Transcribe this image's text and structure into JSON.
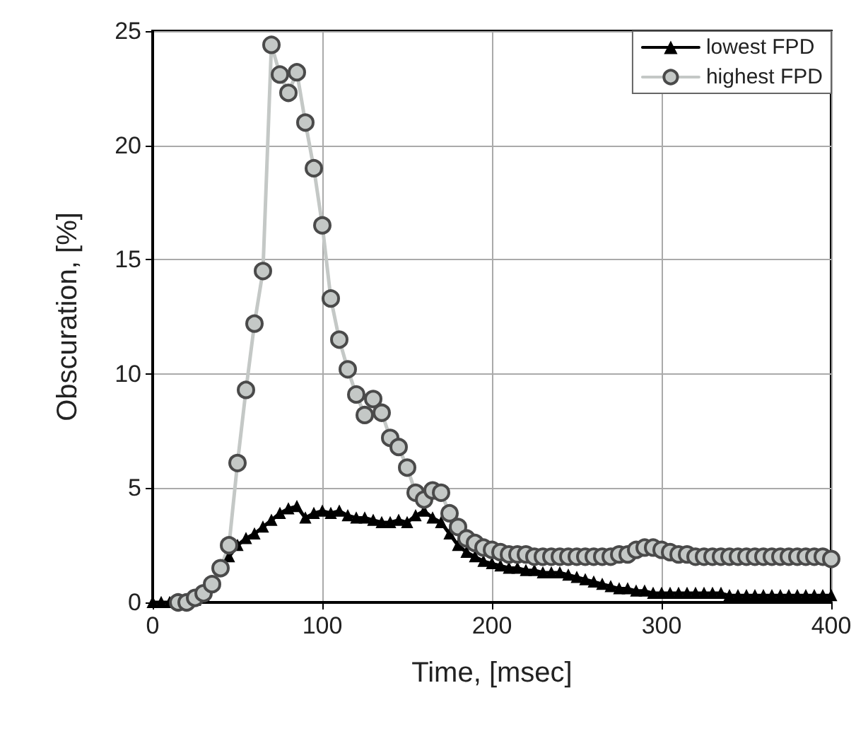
{
  "chart_data": {
    "type": "line",
    "xlabel": "Time, [msec]",
    "ylabel": "Obscuration, [%]",
    "xlim": [
      0,
      400
    ],
    "xticks": [
      0,
      100,
      200,
      300,
      400
    ],
    "ylim": [
      0,
      25
    ],
    "yticks": [
      0,
      5,
      10,
      15,
      20,
      25
    ],
    "grid": true,
    "legend": "top right",
    "series": [
      {
        "name": "lowest FPD",
        "color": "#000000",
        "marker": "triangle",
        "x": [
          0,
          5,
          10,
          15,
          20,
          25,
          30,
          35,
          40,
          45,
          50,
          55,
          60,
          65,
          70,
          75,
          80,
          85,
          90,
          95,
          100,
          105,
          110,
          115,
          120,
          125,
          130,
          135,
          140,
          145,
          150,
          155,
          160,
          165,
          170,
          175,
          180,
          185,
          190,
          195,
          200,
          205,
          210,
          215,
          220,
          225,
          230,
          235,
          240,
          245,
          250,
          255,
          260,
          265,
          270,
          275,
          280,
          285,
          290,
          295,
          300,
          305,
          310,
          315,
          320,
          325,
          330,
          335,
          340,
          345,
          350,
          355,
          360,
          365,
          370,
          375,
          380,
          385,
          390,
          395,
          400
        ],
        "values": [
          0,
          0,
          0,
          0,
          0,
          0.1,
          0.3,
          0.8,
          1.5,
          2.0,
          2.5,
          2.8,
          3.0,
          3.3,
          3.6,
          3.9,
          4.1,
          4.2,
          3.7,
          3.9,
          4.0,
          3.9,
          4.0,
          3.8,
          3.7,
          3.7,
          3.6,
          3.5,
          3.5,
          3.6,
          3.5,
          3.8,
          4.0,
          3.7,
          3.5,
          3.0,
          2.5,
          2.2,
          2.0,
          1.8,
          1.7,
          1.6,
          1.5,
          1.5,
          1.4,
          1.4,
          1.3,
          1.3,
          1.3,
          1.2,
          1.1,
          1.0,
          0.9,
          0.8,
          0.7,
          0.6,
          0.6,
          0.5,
          0.5,
          0.4,
          0.4,
          0.4,
          0.4,
          0.4,
          0.4,
          0.4,
          0.4,
          0.4,
          0.3,
          0.3,
          0.3,
          0.3,
          0.3,
          0.3,
          0.3,
          0.3,
          0.3,
          0.3,
          0.3,
          0.3,
          0.3
        ]
      },
      {
        "name": "highest FPD",
        "color": "#c4c8c6",
        "marker": "circle",
        "x": [
          15,
          20,
          25,
          30,
          35,
          40,
          45,
          50,
          55,
          60,
          65,
          70,
          75,
          80,
          85,
          90,
          95,
          100,
          105,
          110,
          115,
          120,
          125,
          130,
          135,
          140,
          145,
          150,
          155,
          160,
          165,
          170,
          175,
          180,
          185,
          190,
          195,
          200,
          205,
          210,
          215,
          220,
          225,
          230,
          235,
          240,
          245,
          250,
          255,
          260,
          265,
          270,
          275,
          280,
          285,
          290,
          295,
          300,
          305,
          310,
          315,
          320,
          325,
          330,
          335,
          340,
          345,
          350,
          355,
          360,
          365,
          370,
          375,
          380,
          385,
          390,
          395,
          400
        ],
        "values": [
          0,
          0,
          0.2,
          0.4,
          0.8,
          1.5,
          2.5,
          6.1,
          9.3,
          12.2,
          14.5,
          24.4,
          23.1,
          22.3,
          23.2,
          21.0,
          19.0,
          16.5,
          13.3,
          11.5,
          10.2,
          9.1,
          8.2,
          8.9,
          8.3,
          7.2,
          6.8,
          5.9,
          4.8,
          4.5,
          4.9,
          4.8,
          3.9,
          3.3,
          2.8,
          2.6,
          2.4,
          2.3,
          2.2,
          2.1,
          2.1,
          2.1,
          2.0,
          2.0,
          2.0,
          2.0,
          2.0,
          2.0,
          2.0,
          2.0,
          2.0,
          2.0,
          2.1,
          2.1,
          2.3,
          2.4,
          2.4,
          2.3,
          2.2,
          2.1,
          2.1,
          2.0,
          2.0,
          2.0,
          2.0,
          2.0,
          2.0,
          2.0,
          2.0,
          2.0,
          2.0,
          2.0,
          2.0,
          2.0,
          2.0,
          2.0,
          2.0,
          1.9
        ]
      }
    ]
  }
}
